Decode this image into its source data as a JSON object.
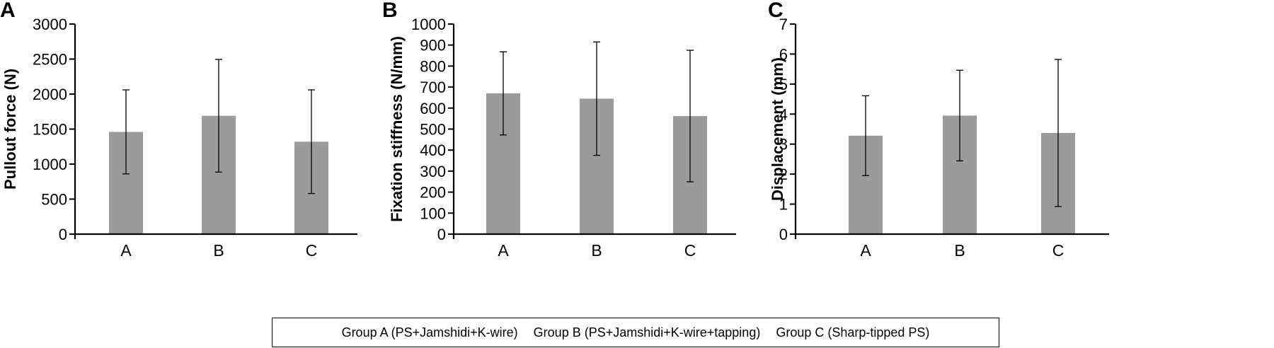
{
  "chart_data": [
    {
      "type": "bar",
      "panel_label": "A",
      "categories": [
        "A",
        "B",
        "C"
      ],
      "values": [
        1460,
        1690,
        1320
      ],
      "error": [
        600,
        805,
        740
      ],
      "ylabel": "Pullout force (N)",
      "xlabel": "",
      "ylim": [
        0,
        3000
      ],
      "yticks": [
        0,
        500,
        1000,
        1500,
        2000,
        2500,
        3000
      ],
      "bar_color": "#9b9b9b",
      "grid": false
    },
    {
      "type": "bar",
      "panel_label": "B",
      "categories": [
        "A",
        "B",
        "C"
      ],
      "values": [
        670,
        645,
        562
      ],
      "error": [
        198,
        270,
        313
      ],
      "ylabel": "Fixation stiffness (N/mm)",
      "xlabel": "",
      "ylim": [
        0,
        1000
      ],
      "yticks": [
        0,
        100,
        200,
        300,
        400,
        500,
        600,
        700,
        800,
        900,
        1000
      ],
      "bar_color": "#9b9b9b",
      "grid": false
    },
    {
      "type": "bar",
      "panel_label": "C",
      "categories": [
        "A",
        "B",
        "C"
      ],
      "values": [
        3.28,
        3.95,
        3.37
      ],
      "error": [
        1.33,
        1.51,
        2.45
      ],
      "ylabel": "Displacement (mm)",
      "xlabel": "",
      "ylim": [
        0,
        7
      ],
      "yticks": [
        0,
        1,
        2,
        3,
        4,
        5,
        6,
        7
      ],
      "bar_color": "#9b9b9b",
      "grid": false
    }
  ],
  "legend": {
    "group_a": "Group A (PS+Jamshidi+K-wire)",
    "group_b": "Group B (PS+Jamshidi+K-wire+tapping)",
    "group_c": "Group C (Sharp-tipped PS)"
  }
}
